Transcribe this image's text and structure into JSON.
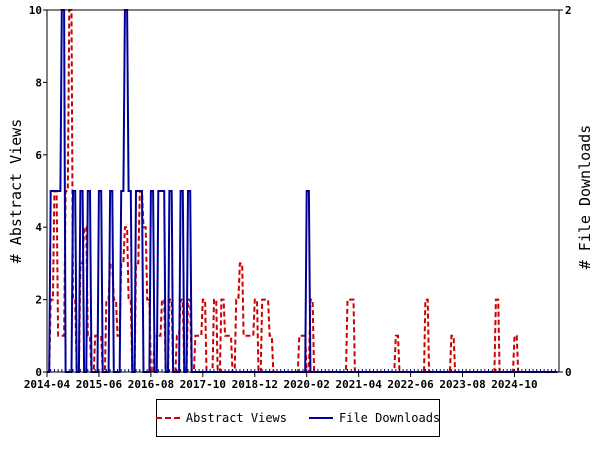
{
  "chart_data": {
    "type": "line",
    "x_tick_labels": [
      "2014-04",
      "2015-06",
      "2016-08",
      "2017-10",
      "2018-12",
      "2020-02",
      "2021-04",
      "2022-06",
      "2023-08",
      "2024-10"
    ],
    "x_tick_months": [
      0,
      14,
      28,
      42,
      56,
      70,
      84,
      98,
      112,
      126
    ],
    "x_range_months": [
      0,
      138
    ],
    "ylabel_left": "# Abstract Views",
    "ylabel_right": "# File Downloads",
    "ylim_left": [
      0,
      10
    ],
    "ylim_right": [
      0,
      2
    ],
    "yticks_left": [
      "0",
      "2",
      "4",
      "6",
      "8",
      "10"
    ],
    "yticks_right": [
      "0",
      "2"
    ],
    "legend_position": "bottom-center",
    "series": [
      {
        "name": "Abstract Views",
        "axis": "left",
        "color": "#cc0000",
        "style": "dashed",
        "x_month": [
          0,
          1,
          2,
          3,
          4,
          5,
          6,
          7,
          8,
          9,
          10,
          11,
          12,
          13,
          14,
          15,
          16,
          17,
          18,
          19,
          20,
          21,
          22,
          23,
          24,
          25,
          26,
          27,
          28,
          29,
          30,
          31,
          32,
          33,
          34,
          35,
          36,
          37,
          38,
          39,
          40,
          41,
          42,
          43,
          44,
          45,
          46,
          47,
          48,
          49,
          50,
          51,
          52,
          53,
          54,
          55,
          56,
          57,
          58,
          59,
          60,
          61,
          62,
          63,
          64,
          65,
          66,
          67,
          68,
          69,
          70,
          71,
          72,
          73,
          74,
          75,
          76,
          77,
          78,
          79,
          80,
          81,
          82,
          83,
          84,
          85,
          86,
          87,
          88,
          89,
          90,
          91,
          92,
          93,
          94,
          95,
          96,
          97,
          98,
          99,
          100,
          101,
          102,
          103,
          104,
          105,
          106,
          107,
          108,
          109,
          110,
          111,
          112,
          113,
          114,
          115,
          116,
          117,
          118,
          119,
          120,
          121,
          122,
          123,
          124,
          125,
          126,
          127,
          128,
          129,
          130,
          131,
          132,
          133,
          134,
          135,
          136,
          137
        ],
        "values": [
          0,
          2,
          5,
          1,
          1,
          5,
          10,
          2,
          0,
          3,
          4,
          1,
          0,
          1,
          1,
          0,
          2,
          3,
          2,
          1,
          3,
          4,
          2,
          0,
          3,
          5,
          4,
          2,
          0,
          1,
          1,
          2,
          0,
          2,
          0,
          1,
          2,
          0,
          2,
          0,
          1,
          1,
          2,
          0,
          0,
          2,
          0,
          2,
          1,
          1,
          0,
          2,
          3,
          1,
          1,
          1,
          2,
          0,
          2,
          2,
          1,
          0,
          0,
          0,
          0,
          0,
          0,
          0,
          1,
          1,
          0,
          2,
          0,
          0,
          0,
          0,
          0,
          0,
          0,
          0,
          0,
          2,
          2,
          0,
          0,
          0,
          0,
          0,
          0,
          0,
          0,
          0,
          0,
          0,
          1,
          0,
          0,
          0,
          0,
          0,
          0,
          0,
          2,
          0,
          0,
          0,
          0,
          0,
          0,
          1,
          0,
          0,
          0,
          0,
          0,
          0,
          0,
          0,
          0,
          0,
          0,
          2,
          0,
          0,
          0,
          0,
          1,
          0,
          0,
          0,
          0,
          0,
          0,
          0,
          0,
          0,
          0,
          0
        ]
      },
      {
        "name": "File Downloads",
        "axis": "right",
        "color": "#000099",
        "style": "solid",
        "x_month": [
          0,
          1,
          2,
          3,
          4,
          5,
          6,
          7,
          8,
          9,
          10,
          11,
          12,
          13,
          14,
          15,
          16,
          17,
          18,
          19,
          20,
          21,
          22,
          23,
          24,
          25,
          26,
          27,
          28,
          29,
          30,
          31,
          32,
          33,
          34,
          35,
          36,
          37,
          38,
          39,
          40,
          41,
          42,
          43,
          44,
          45,
          46,
          47,
          48,
          49,
          50,
          51,
          52,
          53,
          54,
          55,
          56,
          57,
          58,
          59,
          60,
          61,
          62,
          63,
          64,
          65,
          66,
          67,
          68,
          69,
          70,
          71,
          72,
          73,
          74,
          75,
          76,
          77,
          78,
          79,
          80,
          81,
          82,
          83,
          84,
          85,
          86,
          87,
          88,
          89,
          90,
          91,
          92,
          93,
          94,
          95,
          96,
          97,
          98,
          99,
          100,
          101,
          102,
          103,
          104,
          105,
          106,
          107,
          108,
          109,
          110,
          111,
          112,
          113,
          114,
          115,
          116,
          117,
          118,
          119,
          120,
          121,
          122,
          123,
          124,
          125,
          126,
          127,
          128,
          129,
          130,
          131,
          132,
          133,
          134,
          135,
          136,
          137
        ],
        "values": [
          0,
          1,
          1,
          1,
          2,
          0,
          0,
          1,
          0,
          1,
          0,
          1,
          0,
          0,
          1,
          0,
          0,
          1,
          0,
          0,
          1,
          2,
          1,
          0,
          1,
          1,
          0,
          0,
          1,
          0,
          1,
          1,
          0,
          1,
          0,
          0,
          1,
          0,
          1,
          0,
          0,
          0,
          0,
          0,
          0,
          0,
          0,
          0,
          0,
          0,
          0,
          0,
          0,
          0,
          0,
          0,
          0,
          0,
          0,
          0,
          0,
          0,
          0,
          0,
          0,
          0,
          0,
          0,
          0,
          0,
          1,
          0,
          0,
          0,
          0,
          0,
          0,
          0,
          0,
          0,
          0,
          0,
          0,
          0,
          0,
          0,
          0,
          0,
          0,
          0,
          0,
          0,
          0,
          0,
          0,
          0,
          0,
          0,
          0,
          0,
          0,
          0,
          0,
          0,
          0,
          0,
          0,
          0,
          0,
          0,
          0,
          0,
          0,
          0,
          0,
          0,
          0,
          0,
          0,
          0,
          0,
          0,
          0,
          0,
          0,
          0,
          0,
          0,
          0,
          0,
          0,
          0,
          0,
          0,
          0,
          0,
          0,
          0
        ]
      }
    ]
  }
}
